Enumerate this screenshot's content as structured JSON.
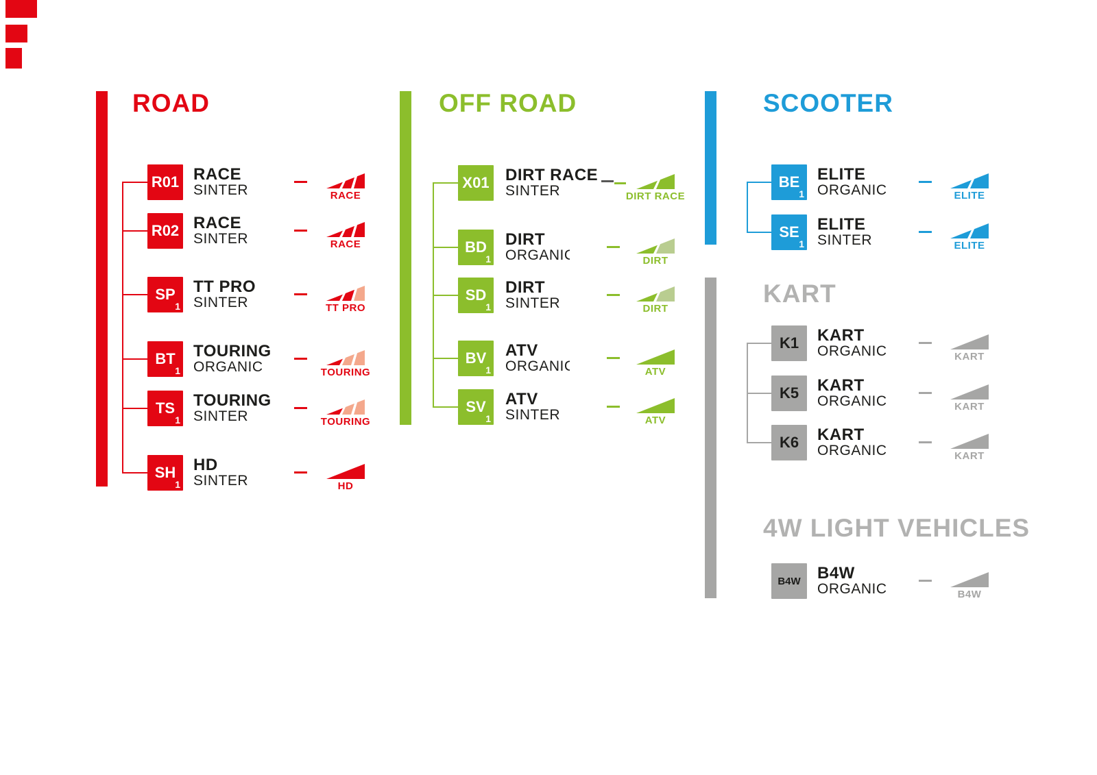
{
  "page": {
    "background": "#ffffff",
    "corner_marks_color": "#e30613"
  },
  "sections": [
    {
      "id": "road",
      "title": "ROAD",
      "color": "#e30613",
      "color_light": "#f4a88c",
      "title_color": "#e30613",
      "badge_color": "#e30613",
      "badge_text_color": "#ffffff",
      "rows": [
        {
          "code": "R01",
          "sub": "",
          "name": "RACE",
          "material": "SINTER",
          "icon": {
            "type": "wedge3",
            "levels": [
              1,
              1,
              1
            ],
            "label": "RACE"
          }
        },
        {
          "code": "R02",
          "sub": "",
          "name": "RACE",
          "material": "SINTER",
          "icon": {
            "type": "wedge3",
            "levels": [
              1,
              1,
              1
            ],
            "label": "RACE"
          }
        },
        {
          "code": "SP",
          "sub": "1",
          "name": "TT PRO",
          "material": "SINTER",
          "icon": {
            "type": "wedge3",
            "levels": [
              1,
              1,
              0
            ],
            "label": "TT PRO"
          }
        },
        {
          "code": "BT",
          "sub": "1",
          "name": "TOURING",
          "material": "ORGANIC",
          "icon": {
            "type": "wedge3",
            "levels": [
              1,
              0,
              0
            ],
            "label": "TOURING"
          }
        },
        {
          "code": "TS",
          "sub": "1",
          "name": "TOURING",
          "material": "SINTER",
          "icon": {
            "type": "wedge3",
            "levels": [
              1,
              0,
              0
            ],
            "label": "TOURING"
          }
        },
        {
          "code": "SH",
          "sub": "1",
          "name": "HD",
          "material": "SINTER",
          "icon": {
            "type": "solid",
            "levels": [
              1
            ],
            "label": "HD"
          }
        }
      ]
    },
    {
      "id": "offroad",
      "title": "OFF ROAD",
      "color": "#8cbe2c",
      "color_light": "#b9cd90",
      "title_color": "#8cbe2c",
      "badge_color": "#8cbe2c",
      "badge_text_color": "#ffffff",
      "rows": [
        {
          "code": "X01",
          "sub": "",
          "name": "DIRT RACE",
          "material": "SINTER",
          "dark_dash": true,
          "icon": {
            "type": "wedge2",
            "levels": [
              1,
              1
            ],
            "label": "DIRT RACE"
          }
        },
        {
          "code": "BD",
          "sub": "1",
          "name": "DIRT",
          "material": "ORGANIC",
          "material_clipped": true,
          "icon": {
            "type": "wedge2",
            "levels": [
              1,
              0
            ],
            "label": "DIRT"
          }
        },
        {
          "code": "SD",
          "sub": "1",
          "name": "DIRT",
          "material": "SINTER",
          "icon": {
            "type": "wedge2",
            "levels": [
              1,
              0
            ],
            "label": "DIRT"
          }
        },
        {
          "code": "BV",
          "sub": "1",
          "name": "ATV",
          "material": "ORGANIC",
          "material_clipped": true,
          "icon": {
            "type": "solid",
            "levels": [
              1
            ],
            "label": "ATV"
          }
        },
        {
          "code": "SV",
          "sub": "1",
          "name": "ATV",
          "material": "SINTER",
          "icon": {
            "type": "solid",
            "levels": [
              1
            ],
            "label": "ATV"
          }
        }
      ]
    },
    {
      "id": "scooter",
      "title": "SCOOTER",
      "color": "#1e9cd8",
      "color_light": "#8fcae9",
      "title_color": "#1e9cd8",
      "badge_color": "#1e9cd8",
      "badge_text_color": "#ffffff",
      "rows": [
        {
          "code": "BE",
          "sub": "1",
          "name": "ELITE",
          "material": "ORGANIC",
          "icon": {
            "type": "wedge2",
            "levels": [
              1,
              1
            ],
            "label": "ELITE"
          }
        },
        {
          "code": "SE",
          "sub": "1",
          "name": "ELITE",
          "material": "SINTER",
          "icon": {
            "type": "wedge2",
            "levels": [
              1,
              1
            ],
            "label": "ELITE"
          }
        }
      ]
    },
    {
      "id": "kart",
      "title": "KART",
      "color": "#a6a6a5",
      "color_light": "#cccccb",
      "title_color": "#b2b2b1",
      "badge_color": "#a6a6a5",
      "badge_text_color": "#1d1d1b",
      "rows": [
        {
          "code": "K1",
          "sub": "",
          "name": "KART",
          "material": "ORGANIC",
          "icon": {
            "type": "solid",
            "levels": [
              1
            ],
            "label": "KART"
          }
        },
        {
          "code": "K5",
          "sub": "",
          "name": "KART",
          "material": "ORGANIC",
          "icon": {
            "type": "solid",
            "levels": [
              1
            ],
            "label": "KART"
          }
        },
        {
          "code": "K6",
          "sub": "",
          "name": "KART",
          "material": "ORGANIC",
          "icon": {
            "type": "solid",
            "levels": [
              1
            ],
            "label": "KART"
          }
        }
      ]
    },
    {
      "id": "b4w",
      "title": "4W LIGHT VEHICLES",
      "color": "#a6a6a5",
      "color_light": "#cccccb",
      "title_color": "#b2b2b1",
      "badge_color": "#a6a6a5",
      "badge_text_color": "#1d1d1b",
      "rows": [
        {
          "code": "B4W",
          "sub": "",
          "name": "B4W",
          "material": "ORGANIC",
          "icon": {
            "type": "solid",
            "levels": [
              1
            ],
            "label": "B4W"
          }
        }
      ]
    }
  ]
}
